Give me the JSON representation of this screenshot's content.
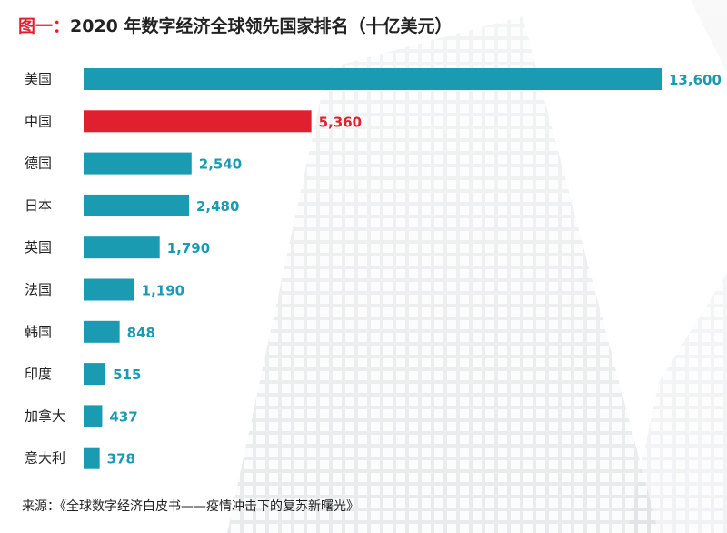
{
  "header": {
    "lead": "图一：",
    "title": "2020 年数字经济全球领先国家排名（十亿美元）"
  },
  "footer": {
    "source": "来源：《全球数字经济白皮书——疫情冲击下的复苏新曙光》"
  },
  "colors": {
    "bar": "#1a9bb1",
    "highlight": "#e0202f",
    "label": "#1a9bb1",
    "highlight_label": "#e0202f",
    "category_text": "#222222"
  },
  "chart_data": {
    "type": "bar",
    "orientation": "horizontal",
    "title": "2020 年数字经济全球领先国家排名（十亿美元）",
    "categories": [
      "美国",
      "中国",
      "德国",
      "日本",
      "英国",
      "法国",
      "韩国",
      "印度",
      "加拿大",
      "意大利"
    ],
    "values": [
      13600,
      5360,
      2540,
      2480,
      1790,
      1190,
      848,
      515,
      437,
      378
    ],
    "value_labels": [
      "13,600",
      "5,360",
      "2,540",
      "2,480",
      "1,790",
      "1,190",
      "848",
      "515",
      "437",
      "378"
    ],
    "highlight_category": "中国",
    "xlim": [
      0,
      13600
    ],
    "grid": false,
    "legend": "none"
  }
}
